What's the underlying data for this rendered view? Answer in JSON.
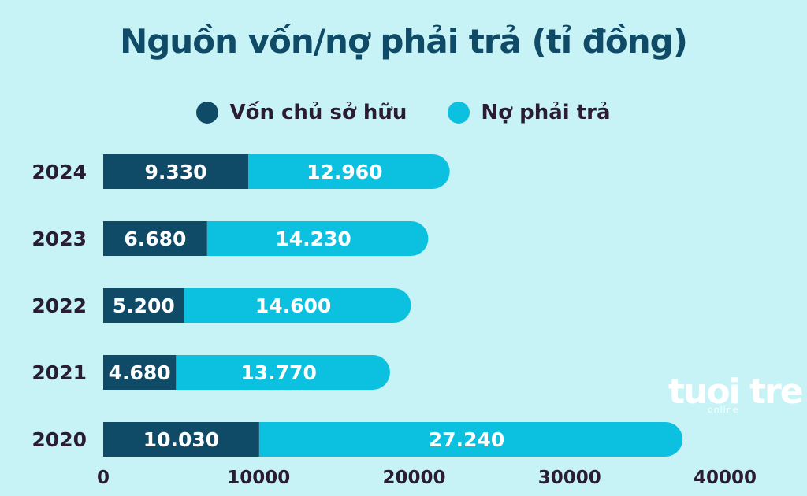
{
  "chart_data": {
    "type": "bar",
    "orientation": "horizontal",
    "stacked": true,
    "title": "Nguồn vốn/nợ phải trả (tỉ đồng)",
    "categories": [
      "2024",
      "2023",
      "2022",
      "2021",
      "2020"
    ],
    "series": [
      {
        "name": "Vốn chủ sở hữu",
        "color": "#0f4a66",
        "values": [
          9330,
          6680,
          5200,
          4680,
          10030
        ],
        "labels": [
          "9.330",
          "6.680",
          "5.200",
          "4.680",
          "10.030"
        ]
      },
      {
        "name": "Nợ phải trả",
        "color": "#0cc0e0",
        "values": [
          12960,
          14230,
          14600,
          13770,
          27240
        ],
        "labels": [
          "12.960",
          "14.230",
          "14.600",
          "13.770",
          "27.240"
        ]
      }
    ],
    "xlim": [
      0,
      40000
    ],
    "xticks": [
      "0",
      "10000",
      "20000",
      "30000",
      "40000"
    ],
    "legend": "top-center",
    "grid": false
  },
  "watermark": {
    "brand": "tuoi tre",
    "sub": "online"
  }
}
